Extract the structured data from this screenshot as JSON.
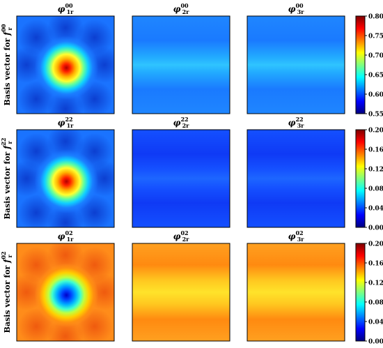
{
  "chart_data": {
    "type": "heatmap",
    "rows": [
      {
        "ylabel_text": "Basis vector for ",
        "ylabel_f": "f",
        "ylabel_sub": "r",
        "ylabel_sup": "00",
        "colorbar": {
          "range": [
            0.55,
            0.8
          ],
          "ticks": [
            "0.55",
            "0.60",
            "0.65",
            "0.70",
            "0.75",
            "0.80"
          ]
        },
        "panels": [
          {
            "sym": "φ",
            "sub": "1r",
            "sup": "00",
            "pattern": "center_peak"
          },
          {
            "sym": "φ",
            "sub": "2r",
            "sup": "00",
            "pattern": "horizontal_band"
          },
          {
            "sym": "φ",
            "sub": "3r",
            "sup": "00",
            "pattern": "horizontal_band"
          }
        ]
      },
      {
        "ylabel_text": "Basis vector for ",
        "ylabel_f": "f",
        "ylabel_sub": "r",
        "ylabel_sup": "22",
        "colorbar": {
          "range": [
            0.0,
            0.2
          ],
          "ticks": [
            "0.00",
            "0.04",
            "0.08",
            "0.12",
            "0.16",
            "0.20"
          ]
        },
        "panels": [
          {
            "sym": "φ",
            "sub": "1r",
            "sup": "22",
            "pattern": "center_peak"
          },
          {
            "sym": "φ",
            "sub": "2r",
            "sup": "22",
            "pattern": "horizontal_band_low"
          },
          {
            "sym": "φ",
            "sub": "3r",
            "sup": "22",
            "pattern": "horizontal_band_low"
          }
        ]
      },
      {
        "ylabel_text": "Basis vector for ",
        "ylabel_f": "f",
        "ylabel_sub": "r",
        "ylabel_sup": "02",
        "colorbar": {
          "range": [
            0.0,
            0.2
          ],
          "ticks": [
            "0.00",
            "0.04",
            "0.08",
            "0.12",
            "0.16",
            "0.20"
          ]
        },
        "panels": [
          {
            "sym": "φ",
            "sub": "1r",
            "sup": "02",
            "pattern": "center_dip"
          },
          {
            "sym": "φ",
            "sub": "2r",
            "sup": "02",
            "pattern": "horizontal_band_high"
          },
          {
            "sym": "φ",
            "sub": "3r",
            "sup": "02",
            "pattern": "horizontal_band_high"
          }
        ]
      }
    ]
  }
}
